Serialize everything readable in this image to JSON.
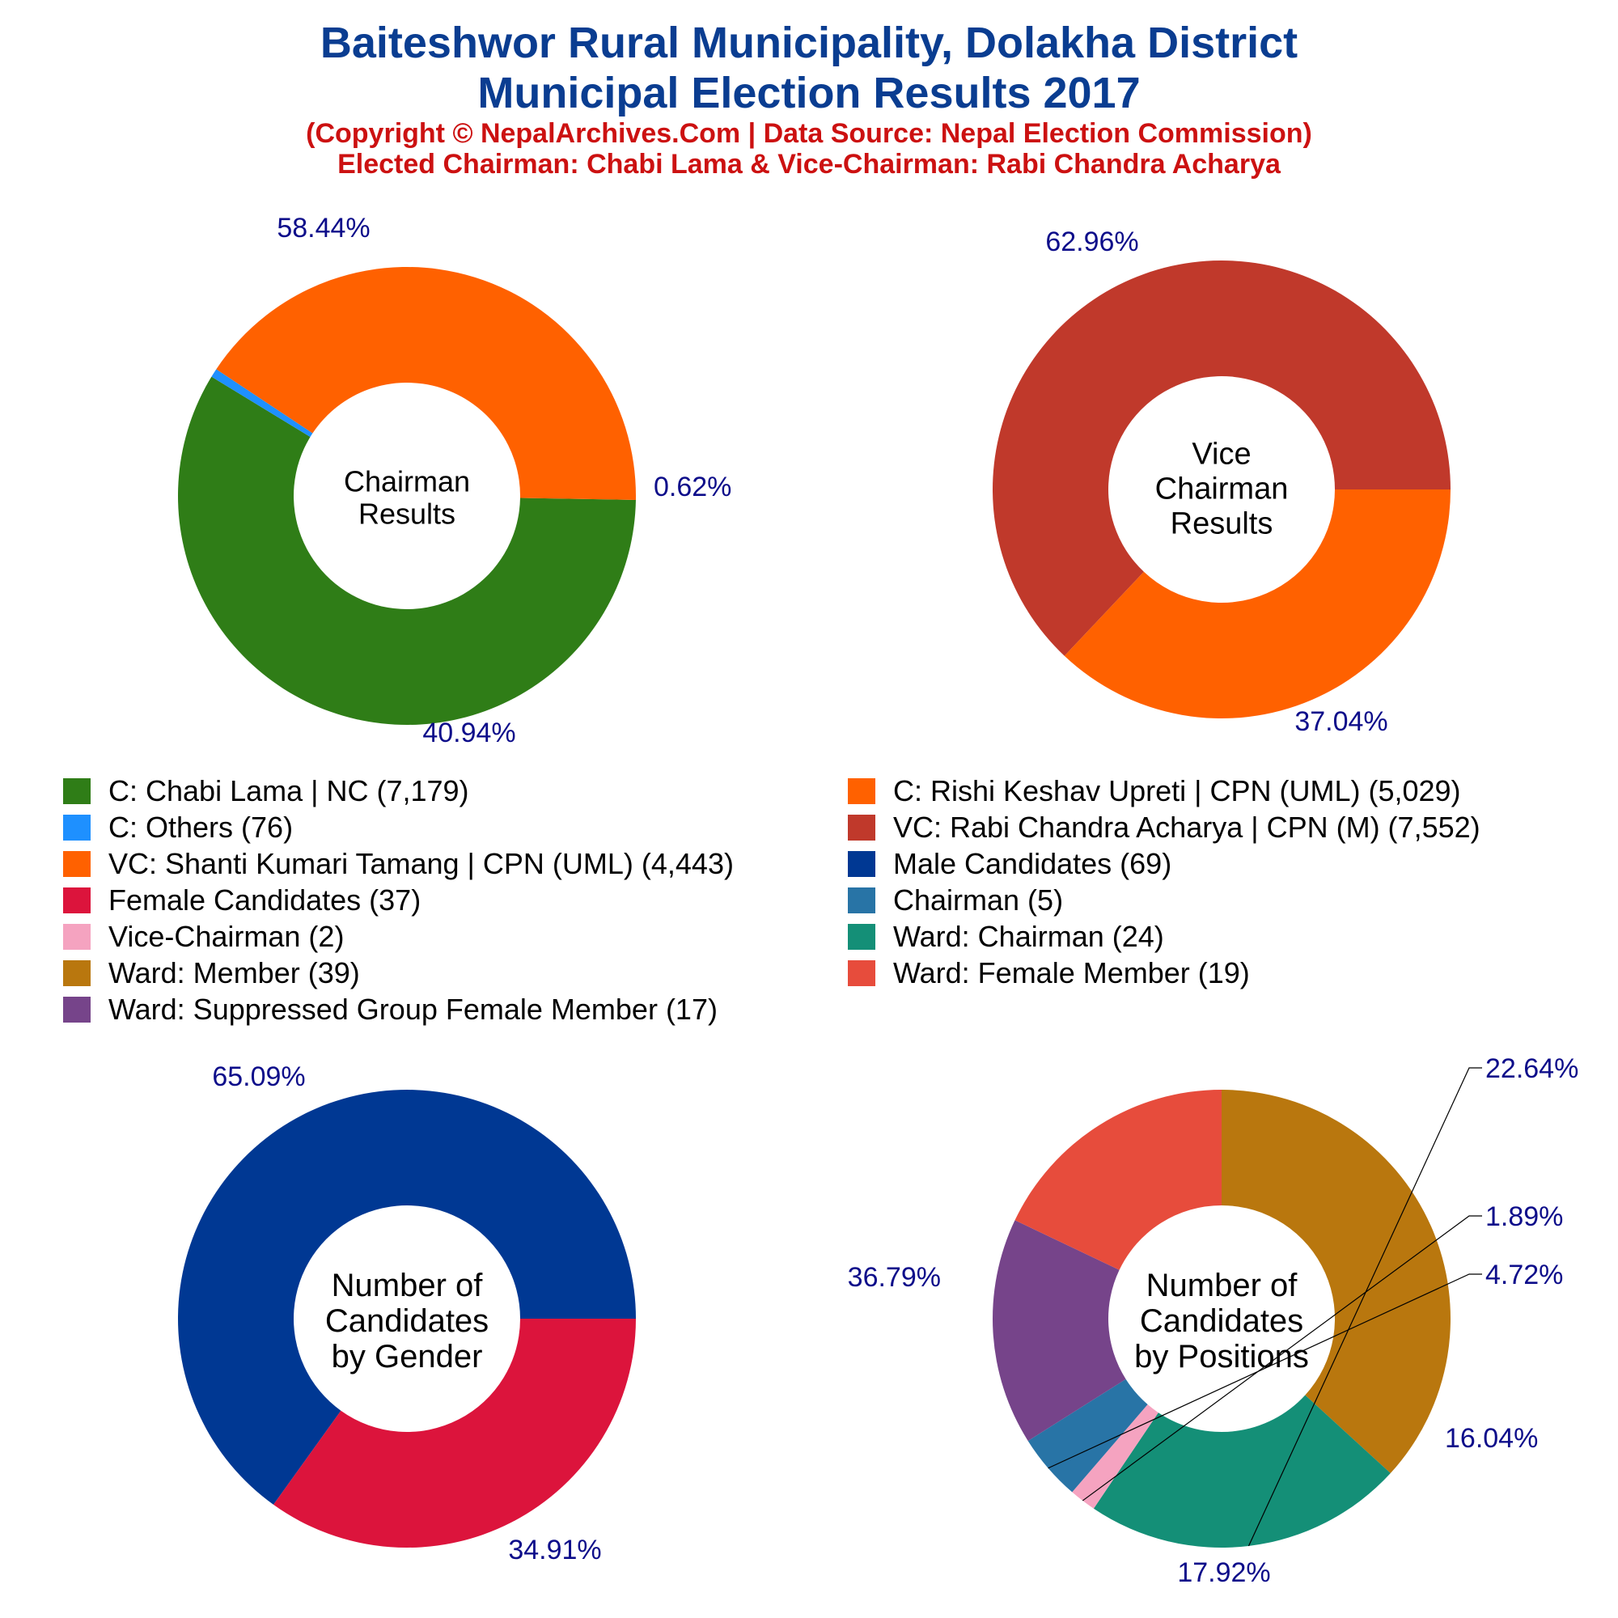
{
  "title": {
    "line1": "Baiteshwor Rural Municipality, Dolakha District",
    "line2": "Municipal Election Results 2017",
    "line3": "(Copyright © NepalArchives.Com | Data Source: Nepal Election Commission)",
    "line4": "Elected Chairman: Chabi Lama & Vice-Chairman: Rabi Chandra Acharya"
  },
  "legend": [
    {
      "label": "C: Chabi Lama | NC (7,179)",
      "color": "#2f7d17"
    },
    {
      "label": "C: Rishi Keshav Upreti | CPN (UML) (5,029)",
      "color": "#ff6100"
    },
    {
      "label": "C: Others (76)",
      "color": "#1e90ff"
    },
    {
      "label": "VC: Rabi Chandra Acharya | CPN (M) (7,552)",
      "color": "#c0392b"
    },
    {
      "label": "VC: Shanti Kumari Tamang | CPN (UML) (4,443)",
      "color": "#ff6100"
    },
    {
      "label": "Male Candidates (69)",
      "color": "#003893"
    },
    {
      "label": "Female Candidates (37)",
      "color": "#dc143c"
    },
    {
      "label": "Chairman (5)",
      "color": "#2874a6"
    },
    {
      "label": "Vice-Chairman (2)",
      "color": "#f5a3c0"
    },
    {
      "label": "Ward: Chairman (24)",
      "color": "#148f77"
    },
    {
      "label": "Ward: Member (39)",
      "color": "#b9770e"
    },
    {
      "label": "Ward: Female Member (19)",
      "color": "#e74c3c"
    },
    {
      "label": "Ward: Suppressed Group Female Member (17)",
      "color": "#76448a"
    }
  ],
  "label_color": "#0d0d8a",
  "chart_data": [
    {
      "type": "pie",
      "donut": true,
      "center_label": [
        "Chairman",
        "Results"
      ],
      "slices": [
        {
          "name": "C: Chabi Lama | NC",
          "value": 7179,
          "percent_label": "58.44%",
          "color": "#2f7d17"
        },
        {
          "name": "C: Others",
          "value": 76,
          "percent_label": "0.62%",
          "color": "#1e90ff"
        },
        {
          "name": "C: Rishi Keshav Upreti | CPN (UML)",
          "value": 5029,
          "percent_label": "40.94%",
          "color": "#ff6100"
        }
      ]
    },
    {
      "type": "pie",
      "donut": true,
      "center_label": [
        "Vice",
        "Chairman",
        "Results"
      ],
      "slices": [
        {
          "name": "VC: Rabi Chandra Acharya | CPN (M)",
          "value": 7552,
          "percent_label": "62.96%",
          "color": "#c0392b"
        },
        {
          "name": "VC: Shanti Kumari Tamang | CPN (UML)",
          "value": 4443,
          "percent_label": "37.04%",
          "color": "#ff6100"
        }
      ]
    },
    {
      "type": "pie",
      "donut": true,
      "center_label": [
        "Number of",
        "Candidates",
        "by Gender"
      ],
      "slices": [
        {
          "name": "Male Candidates",
          "value": 69,
          "percent_label": "65.09%",
          "color": "#003893"
        },
        {
          "name": "Female Candidates",
          "value": 37,
          "percent_label": "34.91%",
          "color": "#dc143c"
        }
      ]
    },
    {
      "type": "pie",
      "donut": true,
      "center_label": [
        "Number of",
        "Candidates",
        "by Positions"
      ],
      "slices": [
        {
          "name": "Ward: Member",
          "value": 39,
          "percent_label": "36.79%",
          "color": "#b9770e"
        },
        {
          "name": "Ward: Chairman",
          "value": 24,
          "percent_label": "22.64%",
          "color": "#148f77"
        },
        {
          "name": "Vice-Chairman",
          "value": 2,
          "percent_label": "1.89%",
          "color": "#f5a3c0"
        },
        {
          "name": "Chairman",
          "value": 5,
          "percent_label": "4.72%",
          "color": "#2874a6"
        },
        {
          "name": "Ward: Suppressed Group Female Member",
          "value": 17,
          "percent_label": "16.04%",
          "color": "#76448a"
        },
        {
          "name": "Ward: Female Member",
          "value": 19,
          "percent_label": "17.92%",
          "color": "#e74c3c"
        }
      ]
    }
  ]
}
